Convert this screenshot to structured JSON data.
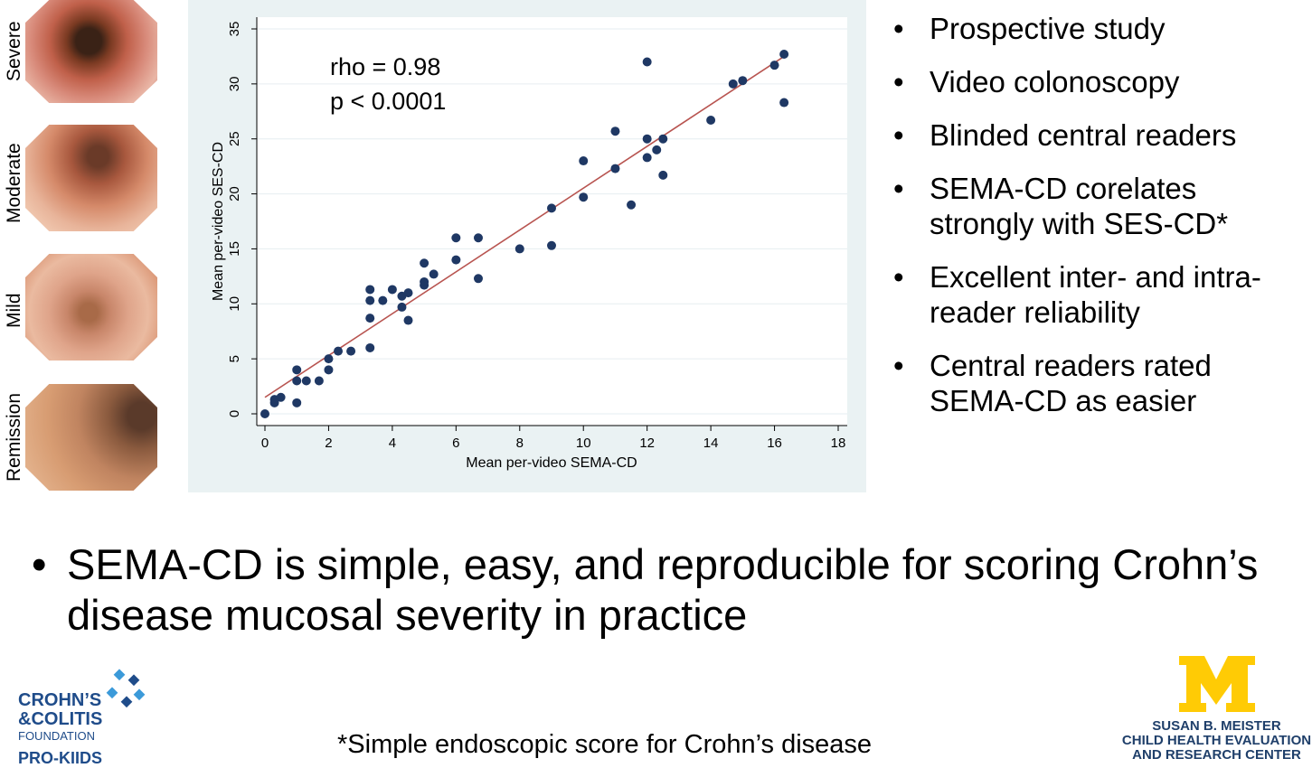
{
  "endoscopy": [
    {
      "label": "Severe"
    },
    {
      "label": "Moderate"
    },
    {
      "label": "Mild"
    },
    {
      "label": "Remission"
    }
  ],
  "bullets": [
    "Prospective study",
    "Video colonoscopy",
    "Blinded central readers",
    "SEMA-CD corelates strongly with SES-CD*",
    "Excellent inter- and intra-reader reliability",
    "Central readers rated SEMA-CD as easier"
  ],
  "main_bullet": "SEMA-CD is simple, easy, and reproducible for scoring Crohn’s disease mucosal severity in practice",
  "footnote": "*Simple endoscopic score for Crohn’s disease",
  "logos": {
    "ccf_line1": "CROHN’S",
    "ccf_line2": "&COLITIS",
    "ccf_line3": "FOUNDATION",
    "ccf_line4": "PRO-KIIDS",
    "um_letter": "M",
    "um_line1": "SUSAN B. MEISTER",
    "um_line2": "CHILD HEALTH EVALUATION",
    "um_line3": "AND RESEARCH CENTER"
  },
  "colors": {
    "point": "#1f3864",
    "fit_line": "#b85450",
    "ccf_blue": "#1f4c8a",
    "um_maize": "#ffcb05"
  },
  "chart_data": {
    "type": "scatter",
    "xlabel": "Mean per-video SEMA-CD",
    "ylabel": "Mean per-video SES-CD",
    "xlim": [
      0,
      18
    ],
    "ylim": [
      0,
      35
    ],
    "xticks": [
      0,
      2,
      4,
      6,
      8,
      10,
      12,
      14,
      16,
      18
    ],
    "yticks": [
      0,
      5,
      10,
      15,
      20,
      25,
      30,
      35
    ],
    "annotation_line1": "rho = 0.98",
    "annotation_line2": "p < 0.0001",
    "fit_line": {
      "x": [
        0,
        16.3
      ],
      "y": [
        1.5,
        32.5
      ]
    },
    "points": [
      [
        0,
        0
      ],
      [
        0.3,
        1
      ],
      [
        0.3,
        1.3
      ],
      [
        0.5,
        1.5
      ],
      [
        1,
        1
      ],
      [
        1,
        3
      ],
      [
        1,
        4
      ],
      [
        1.3,
        3
      ],
      [
        1.7,
        3
      ],
      [
        2,
        4
      ],
      [
        2,
        5
      ],
      [
        2.3,
        5.7
      ],
      [
        2.7,
        5.7
      ],
      [
        3.3,
        6
      ],
      [
        3.3,
        8.7
      ],
      [
        3.3,
        10.3
      ],
      [
        3.3,
        11.3
      ],
      [
        3.7,
        10.3
      ],
      [
        4,
        11.3
      ],
      [
        4.3,
        10.7
      ],
      [
        4.3,
        9.7
      ],
      [
        4.5,
        11
      ],
      [
        4.5,
        8.5
      ],
      [
        5,
        11.7
      ],
      [
        5,
        12
      ],
      [
        5,
        13.7
      ],
      [
        5.3,
        12.7
      ],
      [
        6,
        14
      ],
      [
        6,
        16
      ],
      [
        6.7,
        12.3
      ],
      [
        6.7,
        16
      ],
      [
        8,
        15
      ],
      [
        9,
        15.3
      ],
      [
        9,
        18.7
      ],
      [
        10,
        19.7
      ],
      [
        10,
        23
      ],
      [
        11,
        22.3
      ],
      [
        11,
        25.7
      ],
      [
        11.5,
        19
      ],
      [
        12,
        23.3
      ],
      [
        12,
        25
      ],
      [
        12,
        32
      ],
      [
        12.3,
        24
      ],
      [
        12.5,
        25
      ],
      [
        12.5,
        21.7
      ],
      [
        14,
        26.7
      ],
      [
        14.7,
        30
      ],
      [
        15,
        30.3
      ],
      [
        16,
        31.7
      ],
      [
        16.3,
        32.7
      ],
      [
        16.3,
        28.3
      ]
    ]
  }
}
